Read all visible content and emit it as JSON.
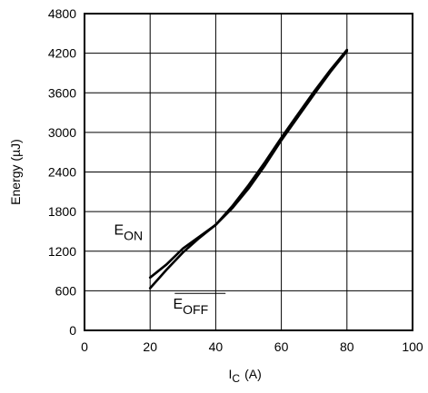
{
  "chart_data": {
    "type": "line",
    "title": "",
    "xlabel": {
      "main": "I",
      "sub": "C",
      "unit": "(A)"
    },
    "ylabel": "Energy (µJ)",
    "xlim": [
      0,
      100
    ],
    "ylim": [
      0,
      4800
    ],
    "xticks": [
      0,
      20,
      40,
      60,
      80,
      100
    ],
    "yticks": [
      0,
      600,
      1200,
      1800,
      2400,
      3000,
      3600,
      4200,
      4800
    ],
    "grid": true,
    "series": [
      {
        "name": "EON",
        "label_main": "E",
        "label_sub": "ON",
        "x": [
          20,
          25,
          30,
          35,
          40,
          45,
          50,
          55,
          60,
          65,
          70,
          75,
          80
        ],
        "y": [
          800,
          1000,
          1240,
          1420,
          1600,
          1850,
          2150,
          2500,
          2880,
          3230,
          3580,
          3920,
          4230
        ]
      },
      {
        "name": "EOFF",
        "label_main": "E",
        "label_sub": "OFF",
        "x": [
          20,
          25,
          30,
          35,
          40,
          45,
          50,
          55,
          60,
          65,
          70,
          75,
          80
        ],
        "y": [
          640,
          920,
          1180,
          1400,
          1600,
          1880,
          2200,
          2550,
          2920,
          3270,
          3620,
          3950,
          4250
        ]
      }
    ]
  }
}
